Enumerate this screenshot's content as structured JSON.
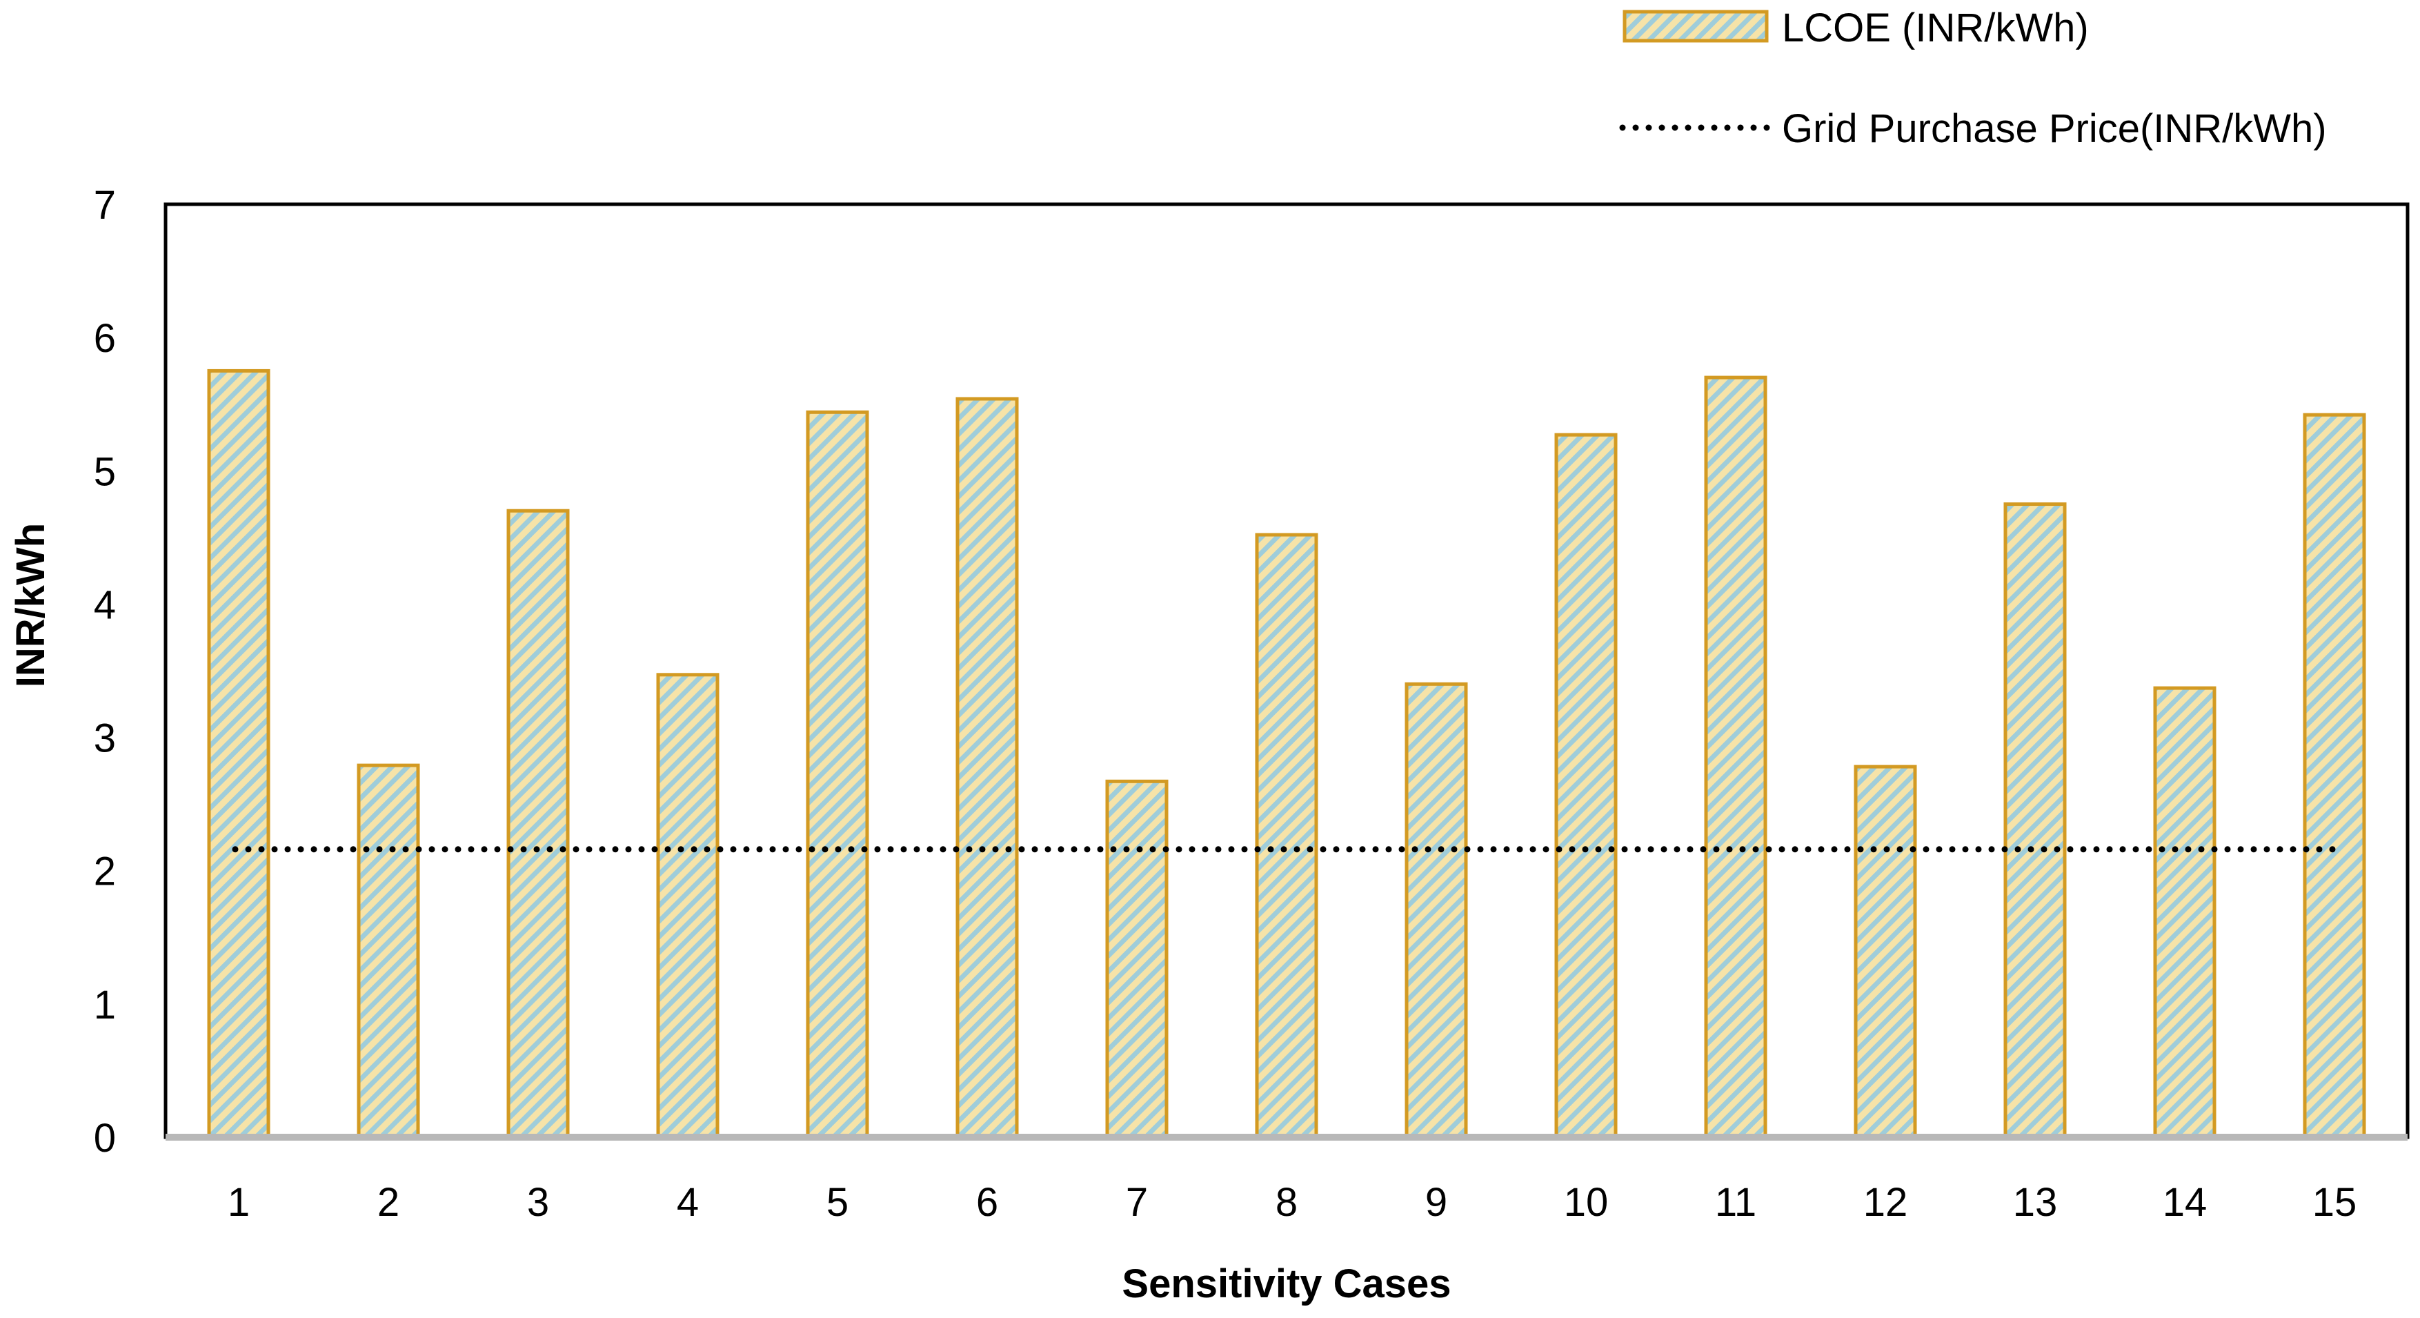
{
  "chart_data": {
    "type": "bar",
    "title": "",
    "xlabel": "Sensitivity Cases",
    "ylabel": "INR/kWh",
    "ylim": [
      0,
      7
    ],
    "yticks": [
      "0",
      "1",
      "2",
      "3",
      "4",
      "5",
      "6",
      "7"
    ],
    "categories": [
      "1",
      "2",
      "3",
      "4",
      "5",
      "6",
      "7",
      "8",
      "9",
      "10",
      "11",
      "12",
      "13",
      "14",
      "15"
    ],
    "series": [
      {
        "name": "LCOE (INR/kWh)",
        "type": "bar",
        "values": [
          5.75,
          2.79,
          4.7,
          3.47,
          5.44,
          5.54,
          2.67,
          4.52,
          3.4,
          5.27,
          5.7,
          2.78,
          4.75,
          3.37,
          5.42
        ],
        "fill_color": "#f6e3a8",
        "stripe_color": "#9fcdda",
        "border_color": "#d39a22"
      },
      {
        "name": "Grid Purchase Price(INR/kWh)",
        "type": "line",
        "style": "dotted",
        "value": 2.16,
        "color": "#000000"
      }
    ],
    "legend": {
      "position": "top-right"
    },
    "grid": false,
    "axis_color": "#b8b8b8",
    "frame_color": "#000000"
  }
}
